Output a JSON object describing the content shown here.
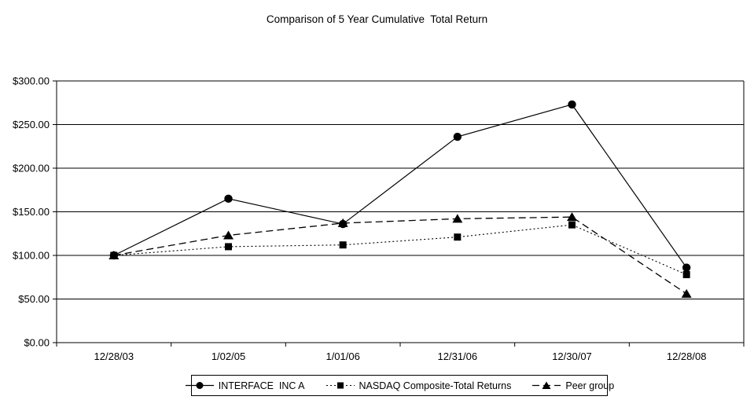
{
  "title": "Comparison of 5 Year Cumulative  Total Return",
  "chart_data": {
    "type": "line",
    "title": "Comparison of 5 Year Cumulative  Total Return",
    "categories": [
      "12/28/03",
      "1/02/05",
      "1/01/06",
      "12/31/06",
      "12/30/07",
      "12/28/08"
    ],
    "series": [
      {
        "name": "INTERFACE  INC A",
        "line_style": "solid",
        "marker": "circle",
        "values": [
          100,
          165,
          136,
          236,
          273,
          86
        ]
      },
      {
        "name": "NASDAQ Composite-Total Returns",
        "line_style": "dotted",
        "marker": "square",
        "values": [
          100,
          110,
          112,
          121,
          135,
          78
        ]
      },
      {
        "name": "Peer group",
        "line_style": "dashed",
        "marker": "triangle",
        "values": [
          100,
          123,
          137,
          142,
          144,
          56
        ]
      }
    ],
    "xlabel": "",
    "ylabel": "",
    "ylim": [
      0,
      300
    ],
    "ytick_step": 50,
    "ytick_labels": [
      "$0.00",
      "$50.00",
      "$100.00",
      "$150.00",
      "$200.00",
      "$250.00",
      "$300.00"
    ],
    "grid": "horizontal",
    "legend_position": "bottom",
    "line_color": "#000000",
    "background_color": "#ffffff"
  }
}
